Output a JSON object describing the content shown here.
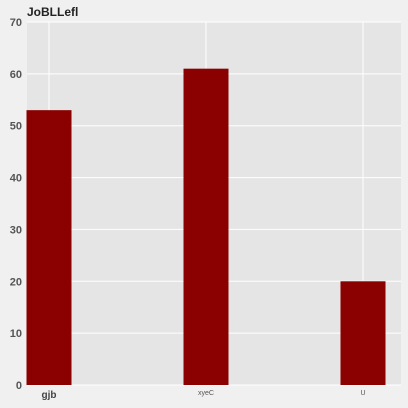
{
  "chart_data": {
    "type": "bar",
    "title": "JoBLLefl",
    "categories": [
      "gjb",
      "xyeC",
      "U"
    ],
    "values": [
      53,
      61,
      20
    ],
    "xlabel": "",
    "ylabel": "",
    "ylim": [
      0,
      70
    ],
    "yticks": [
      0,
      10,
      20,
      30,
      40,
      50,
      60,
      70
    ],
    "grid": true,
    "colors": {
      "bar": "#8b0000",
      "plot_background": "#e5e5e5",
      "figure_background": "#f0f0f0",
      "grid": "#ffffff"
    }
  }
}
